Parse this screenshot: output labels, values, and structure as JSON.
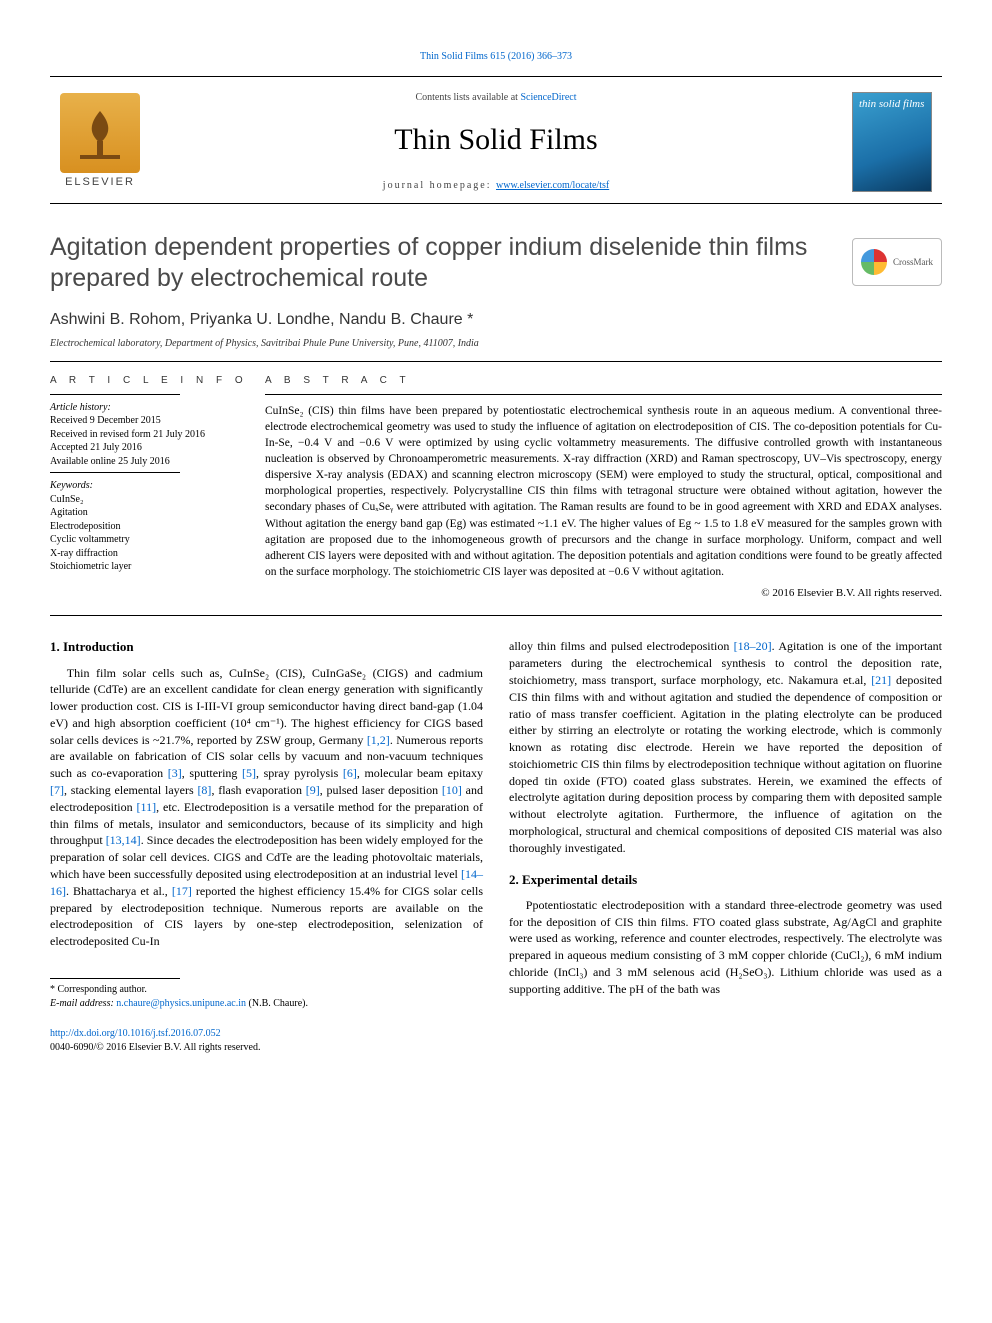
{
  "header": {
    "top_citation": "Thin Solid Films 615 (2016) 366–373",
    "contents_line_pre": "Contents lists available at ",
    "contents_link": "ScienceDirect",
    "journal": "Thin Solid Films",
    "homepage_label": "journal homepage: ",
    "homepage_url": "www.elsevier.com/locate/tsf",
    "publisher": "ELSEVIER",
    "cover_title": "thin solid films"
  },
  "title": "Agitation dependent properties of copper indium diselenide thin films prepared by electrochemical route",
  "crossmark": "CrossMark",
  "authors": "Ashwini B. Rohom, Priyanka U. Londhe, Nandu B. Chaure *",
  "affiliation": "Electrochemical laboratory, Department of Physics, Savitribai Phule Pune University, Pune, 411007, India",
  "article_info": {
    "heading": "A R T I C L E   I N F O",
    "history_label": "Article history:",
    "received": "Received 9 December 2015",
    "revised": "Received in revised form 21 July 2016",
    "accepted": "Accepted 21 July 2016",
    "online": "Available online 25 July 2016",
    "keywords_label": "Keywords:",
    "keywords": [
      "CuInSe₂",
      "Agitation",
      "Electrodeposition",
      "Cyclic voltammetry",
      "X-ray diffraction",
      "Stoichiometric layer"
    ]
  },
  "abstract": {
    "heading": "A B S T R A C T",
    "text": "CuInSe₂ (CIS) thin films have been prepared by potentiostatic electrochemical synthesis route in an aqueous medium. A conventional three-electrode electrochemical geometry was used to study the influence of agitation on electrodeposition of CIS. The co-deposition potentials for Cu-In-Se, −0.4 V and −0.6 V were optimized by using cyclic voltammetry measurements. The diffusive controlled growth with instantaneous nucleation is observed by Chronoamperometric measurements. X-ray diffraction (XRD) and Raman spectroscopy, UV–Vis spectroscopy, energy dispersive X-ray analysis (EDAX) and scanning electron microscopy (SEM) were employed to study the structural, optical, compositional and morphological properties, respectively. Polycrystalline CIS thin films with tetragonal structure were obtained without agitation, however the secondary phases of CuₓSeᵧ were attributed with agitation. The Raman results are found to be in good agreement with XRD and EDAX analyses. Without agitation the energy band gap (Eg) was estimated ~1.1 eV. The higher values of Eg ~ 1.5 to 1.8 eV measured for the samples grown with agitation are proposed due to the inhomogeneous growth of precursors and the change in surface morphology. Uniform, compact and well adherent CIS layers were deposited with and without agitation. The deposition potentials and agitation conditions were found to be greatly affected on the surface morphology. The stoichiometric CIS layer was deposited at −0.6 V without agitation.",
    "copyright": "© 2016 Elsevier B.V. All rights reserved."
  },
  "sections": {
    "intro_heading": "1. Introduction",
    "intro_col1": "Thin film solar cells such as, CuInSe₂ (CIS), CuInGaSe₂ (CIGS) and cadmium telluride (CdTe) are an excellent candidate for clean energy generation with significantly lower production cost. CIS is I-III-VI group semiconductor having direct band-gap (1.04 eV) and high absorption coefficient (10⁴ cm⁻¹). The highest efficiency for CIGS based solar cells devices is ~21.7%, reported by ZSW group, Germany [1,2]. Numerous reports are available on fabrication of CIS solar cells by vacuum and non-vacuum techniques such as co-evaporation [3], sputtering [5], spray pyrolysis [6], molecular beam epitaxy [7], stacking elemental layers [8], flash evaporation [9], pulsed laser deposition [10] and electrodeposition [11], etc. Electrodeposition is a versatile method for the preparation of thin films of metals, insulator and semiconductors, because of its simplicity and high throughput [13,14]. Since decades the electrodeposition has been widely employed for the preparation of solar cell devices. CIGS and CdTe are the leading photovoltaic materials, which have been successfully deposited using electrodeposition at an industrial level [14–16]. Bhattacharya et al., [17] reported the highest efficiency 15.4% for CIGS solar cells prepared by electrodeposition technique. Numerous reports are available on the electrodeposition of CIS layers by one-step electrodeposition, selenization of electrodeposited Cu-In",
    "intro_col2": "alloy thin films and pulsed electrodeposition [18–20]. Agitation is one of the important parameters during the electrochemical synthesis to control the deposition rate, stoichiometry, mass transport, surface morphology, etc. Nakamura et.al, [21] deposited CIS thin films with and without agitation and studied the dependence of composition or ratio of mass transfer coefficient. Agitation in the plating electrolyte can be produced either by stirring an electrolyte or rotating the working electrode, which is commonly known as rotating disc electrode. Herein we have reported the deposition of stoichiometric CIS thin films by electrodeposition technique without agitation on fluorine doped tin oxide (FTO) coated glass substrates. Herein, we examined the effects of electrolyte agitation during deposition process by comparing them with deposited sample without electrolyte agitation. Furthermore, the influence of agitation on the morphological, structural and chemical compositions of deposited CIS material was also thoroughly investigated.",
    "exp_heading": "2. Experimental details",
    "exp_text": "Ppotentiostatic electrodeposition with a standard three-electrode geometry was used for the deposition of CIS thin films. FTO coated glass substrate, Ag/AgCl and graphite were used as working, reference and counter electrodes, respectively. The electrolyte was prepared in aqueous medium consisting of 3 mM copper chloride (CuCl₂), 6 mM indium chloride (InCl₃) and 3 mM selenous acid (H₂SeO₃). Lithium chloride was used as a supporting additive. The pH of the bath was"
  },
  "footnote": {
    "corr": "* Corresponding author.",
    "email_label": "E-mail address: ",
    "email": "n.chaure@physics.unipune.ac.in",
    "email_tail": " (N.B. Chaure)."
  },
  "doi": {
    "url": "http://dx.doi.org/10.1016/j.tsf.2016.07.052",
    "issn_line": "0040-6090/© 2016 Elsevier B.V. All rights reserved."
  },
  "refs": {
    "r1": "[1,2]",
    "r3": "[3]",
    "r5": "[5]",
    "r6": "[6]",
    "r7": "[7]",
    "r8": "[8]",
    "r9": "[9]",
    "r10": "[10]",
    "r11": "[11]",
    "r13": "[13,14]",
    "r14": "[14–16]",
    "r17": "[17]",
    "r18": "[18–20]",
    "r21": "[21]"
  },
  "colors": {
    "link": "#0066cc",
    "title_gray": "#4a4a4a",
    "elsevier_orange": "#e8b14a",
    "cover_blue_top": "#3aa0d0",
    "cover_blue_bot": "#0a3a60"
  },
  "typography": {
    "body_pt": 12,
    "title_pt": 25,
    "journal_pt": 30,
    "small_pt": 10,
    "abstract_pt": 11.5
  }
}
